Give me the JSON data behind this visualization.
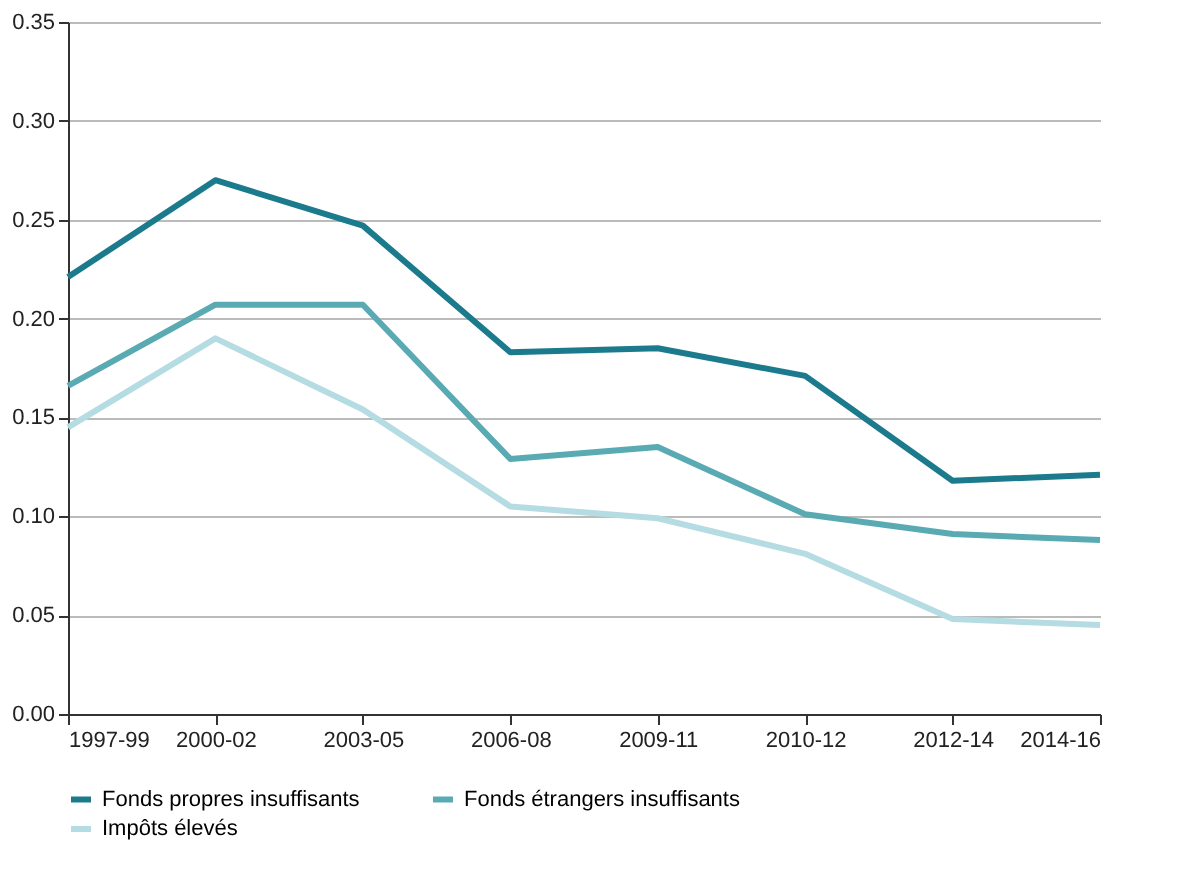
{
  "chart_data": {
    "type": "line",
    "categories": [
      "1997-99",
      "2000-02",
      "2003-05",
      "2006-08",
      "2009-11",
      "2010-12",
      "2012-14",
      "2014-16"
    ],
    "series": [
      {
        "name": "Fonds propres insuffisants",
        "color": "#1b7b8d",
        "values": [
          0.221,
          0.27,
          0.247,
          0.183,
          0.185,
          0.171,
          0.118,
          0.121
        ]
      },
      {
        "name": "Fonds étrangers insuffisants",
        "color": "#5aaab4",
        "values": [
          0.166,
          0.207,
          0.207,
          0.129,
          0.135,
          0.101,
          0.091,
          0.088
        ]
      },
      {
        "name": "Impôts élevés",
        "color": "#b4dce2",
        "values": [
          0.145,
          0.19,
          0.154,
          0.105,
          0.099,
          0.081,
          0.048,
          0.045
        ]
      }
    ],
    "ylim": [
      0,
      0.35
    ],
    "yticks": [
      {
        "value": 0,
        "label": "0.00"
      },
      {
        "value": 0.05,
        "label": "0.05"
      },
      {
        "value": 0.1,
        "label": "0.10"
      },
      {
        "value": 0.15,
        "label": "0.15"
      },
      {
        "value": 0.2,
        "label": "0.20"
      },
      {
        "value": 0.25,
        "label": "0.25"
      },
      {
        "value": 0.3,
        "label": "0.30"
      },
      {
        "value": 0.35,
        "label": "0.35"
      }
    ],
    "grid": "y",
    "legend": "bottom",
    "line_style": "solid",
    "marker": "none"
  }
}
